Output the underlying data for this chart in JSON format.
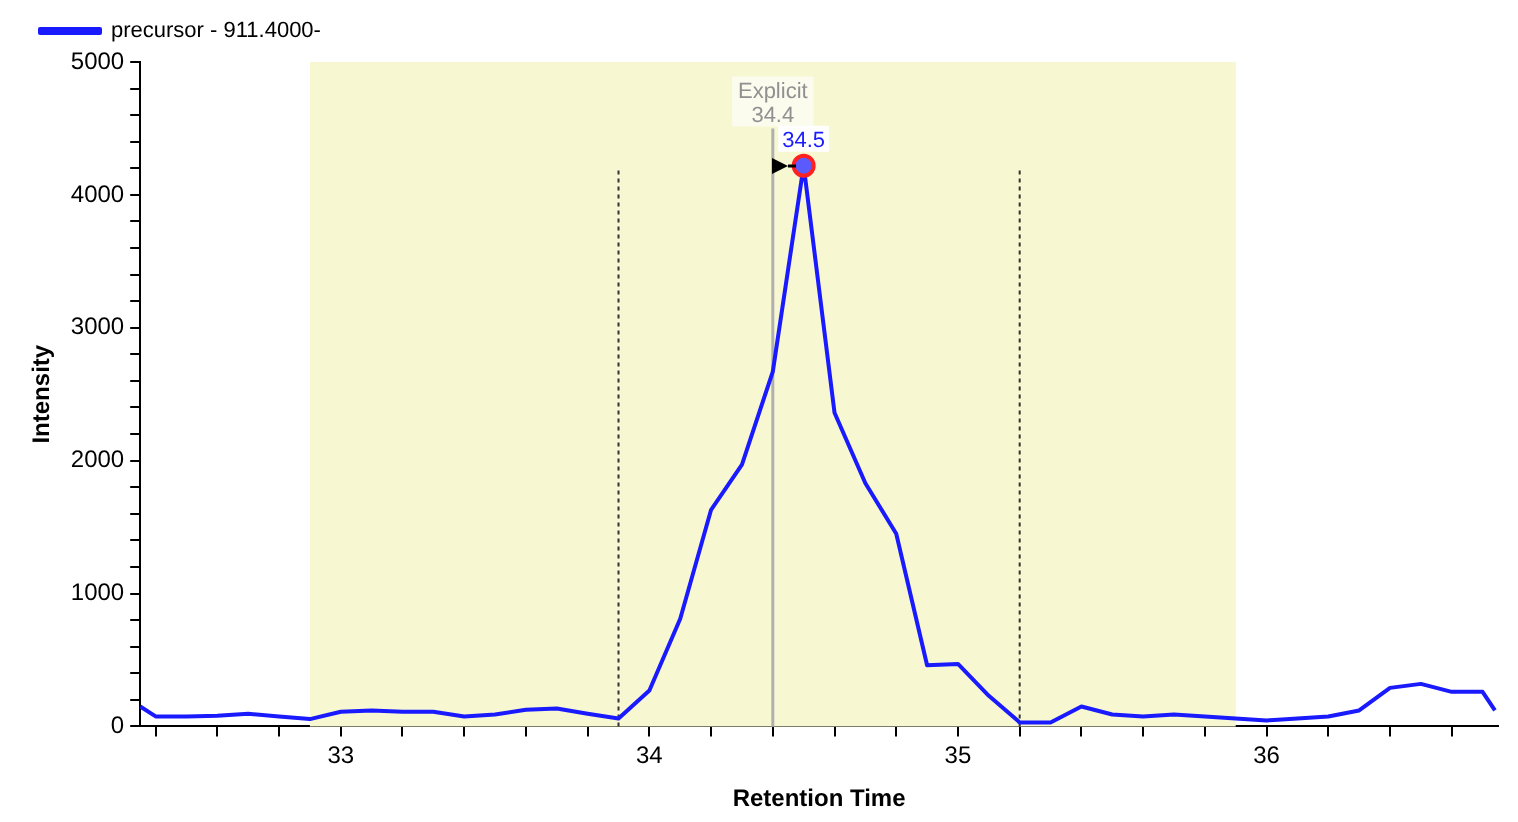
{
  "chart_data": {
    "type": "line",
    "xlabel": "Retention Time",
    "ylabel": "Intensity",
    "series": [
      {
        "name": "precursor - 911.4000-",
        "color": "#1a1aff",
        "x": [
          32.35,
          32.4,
          32.5,
          32.6,
          32.7,
          32.8,
          32.9,
          33.0,
          33.1,
          33.2,
          33.3,
          33.4,
          33.5,
          33.6,
          33.7,
          33.8,
          33.9,
          34.0,
          34.1,
          34.2,
          34.3,
          34.4,
          34.5,
          34.6,
          34.7,
          34.8,
          34.9,
          35.0,
          35.1,
          35.2,
          35.3,
          35.4,
          35.5,
          35.6,
          35.7,
          35.8,
          35.9,
          36.0,
          36.1,
          36.2,
          36.3,
          36.4,
          36.5,
          36.6,
          36.7,
          36.74
        ],
        "values": [
          150,
          75,
          75,
          80,
          95,
          75,
          55,
          110,
          120,
          110,
          110,
          75,
          90,
          125,
          135,
          95,
          60,
          270,
          810,
          1630,
          1970,
          2670,
          4220,
          2360,
          1830,
          1450,
          460,
          470,
          230,
          30,
          30,
          150,
          90,
          75,
          90,
          75,
          60,
          45,
          60,
          75,
          120,
          290,
          320,
          260,
          260,
          120
        ]
      }
    ],
    "xlim": [
      32.35,
      36.75
    ],
    "xticks": [
      {
        "value": 32.4,
        "label": null
      },
      {
        "value": 32.6,
        "label": null
      },
      {
        "value": 32.8,
        "label": null
      },
      33,
      {
        "value": 33.2,
        "label": null
      },
      {
        "value": 33.4,
        "label": null
      },
      {
        "value": 33.6,
        "label": null
      },
      {
        "value": 33.8,
        "label": null
      },
      34,
      {
        "value": 34.2,
        "label": null
      },
      {
        "value": 34.4,
        "label": null
      },
      {
        "value": 34.6,
        "label": null
      },
      {
        "value": 34.8,
        "label": null
      },
      35,
      {
        "value": 35.2,
        "label": null
      },
      {
        "value": 35.4,
        "label": null
      },
      {
        "value": 35.6,
        "label": null
      },
      {
        "value": 35.8,
        "label": null
      },
      36,
      {
        "value": 36.2,
        "label": null
      },
      {
        "value": 36.4,
        "label": null
      },
      {
        "value": 36.6,
        "label": null
      }
    ],
    "ylim": [
      0,
      5000
    ],
    "yticks": [
      0,
      {
        "value": 200,
        "label": null
      },
      {
        "value": 400,
        "label": null
      },
      {
        "value": 600,
        "label": null
      },
      {
        "value": 800,
        "label": null
      },
      1000,
      {
        "value": 1200,
        "label": null
      },
      {
        "value": 1400,
        "label": null
      },
      {
        "value": 1600,
        "label": null
      },
      {
        "value": 1800,
        "label": null
      },
      2000,
      {
        "value": 2200,
        "label": null
      },
      {
        "value": 2400,
        "label": null
      },
      {
        "value": 2600,
        "label": null
      },
      {
        "value": 2800,
        "label": null
      },
      3000,
      {
        "value": 3200,
        "label": null
      },
      {
        "value": 3400,
        "label": null
      },
      {
        "value": 3600,
        "label": null
      },
      {
        "value": 3800,
        "label": null
      },
      4000,
      {
        "value": 4200,
        "label": null
      },
      {
        "value": 4400,
        "label": null
      },
      {
        "value": 4600,
        "label": null
      },
      {
        "value": 4800,
        "label": null
      },
      5000
    ],
    "bands": [
      {
        "axis": "x",
        "from": 32.9,
        "to": 35.9,
        "color": "#f7f7d2"
      }
    ],
    "ref_lines": [
      {
        "axis": "x",
        "value": 33.9,
        "color": "#333333",
        "line_style": "dotted"
      },
      {
        "axis": "x",
        "value": 35.2,
        "color": "#333333",
        "line_style": "dotted"
      },
      {
        "axis": "x",
        "value": 34.4,
        "label": "Explicit 34.4",
        "color": "#b0b0b0",
        "line_style": "solid"
      }
    ],
    "annotations": [
      {
        "text": "34.5",
        "x": 34.5,
        "y": 4220
      }
    ],
    "grid": false,
    "legend": "top left",
    "marker": "none",
    "line_style": "solid"
  }
}
